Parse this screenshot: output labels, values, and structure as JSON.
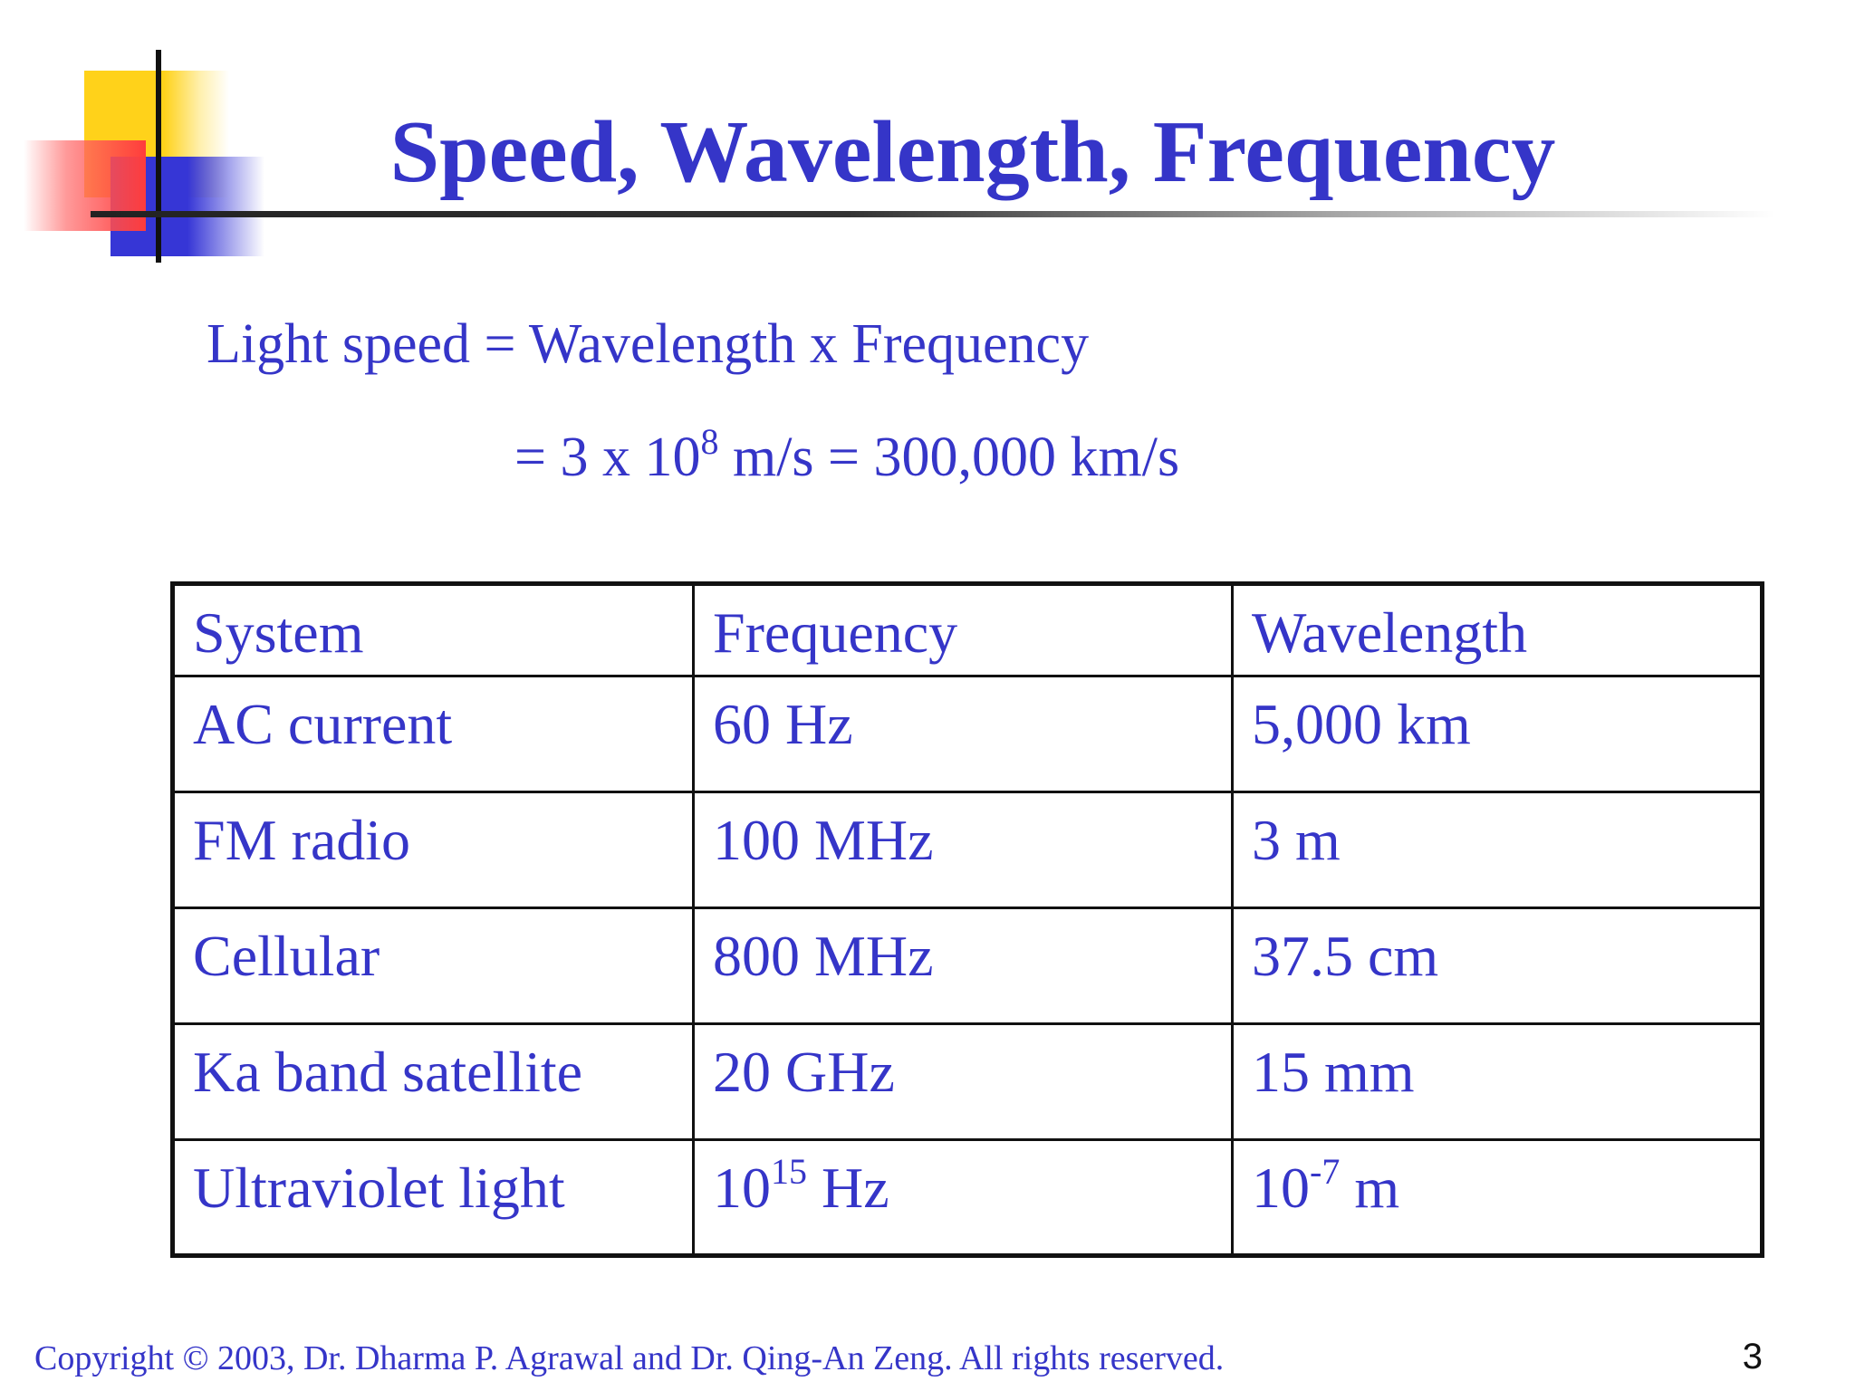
{
  "slide": {
    "title": "Speed, Wavelength, Frequency",
    "formula": {
      "line1": "Light speed = Wavelength x Frequency",
      "line2_prefix": "= 3 x 10",
      "line2_sup": "8",
      "line2_suffix": " m/s = 300,000 km/s"
    },
    "table": {
      "headers": [
        "System",
        "Frequency",
        "Wavelength"
      ],
      "rows": [
        {
          "system": "AC current",
          "frequency": "60 Hz",
          "frequency_sup": "",
          "frequency_suffix": "",
          "wavelength": "5,000 km",
          "wavelength_sup": "",
          "wavelength_suffix": ""
        },
        {
          "system": "FM radio",
          "frequency": "100 MHz",
          "frequency_sup": "",
          "frequency_suffix": "",
          "wavelength": "3 m",
          "wavelength_sup": "",
          "wavelength_suffix": ""
        },
        {
          "system": "Cellular",
          "frequency": "800 MHz",
          "frequency_sup": "",
          "frequency_suffix": "",
          "wavelength": "37.5 cm",
          "wavelength_sup": "",
          "wavelength_suffix": ""
        },
        {
          "system": "Ka band satellite",
          "frequency": "20 GHz",
          "frequency_sup": "",
          "frequency_suffix": "",
          "wavelength": "15 mm",
          "wavelength_sup": "",
          "wavelength_suffix": ""
        },
        {
          "system": "Ultraviolet light",
          "frequency": "10",
          "frequency_sup": "15",
          "frequency_suffix": " Hz",
          "wavelength": "10",
          "wavelength_sup": "-7",
          "wavelength_suffix": " m"
        }
      ]
    },
    "footer": "Copyright © 2003, Dr. Dharma P. Agrawal and Dr. Qing-An Zeng. All rights reserved.",
    "page_number": "3",
    "colors": {
      "text": "#3535c8",
      "yellow": "#ffd21a",
      "blue": "#3636d6",
      "red": "#ff3c3c"
    }
  }
}
